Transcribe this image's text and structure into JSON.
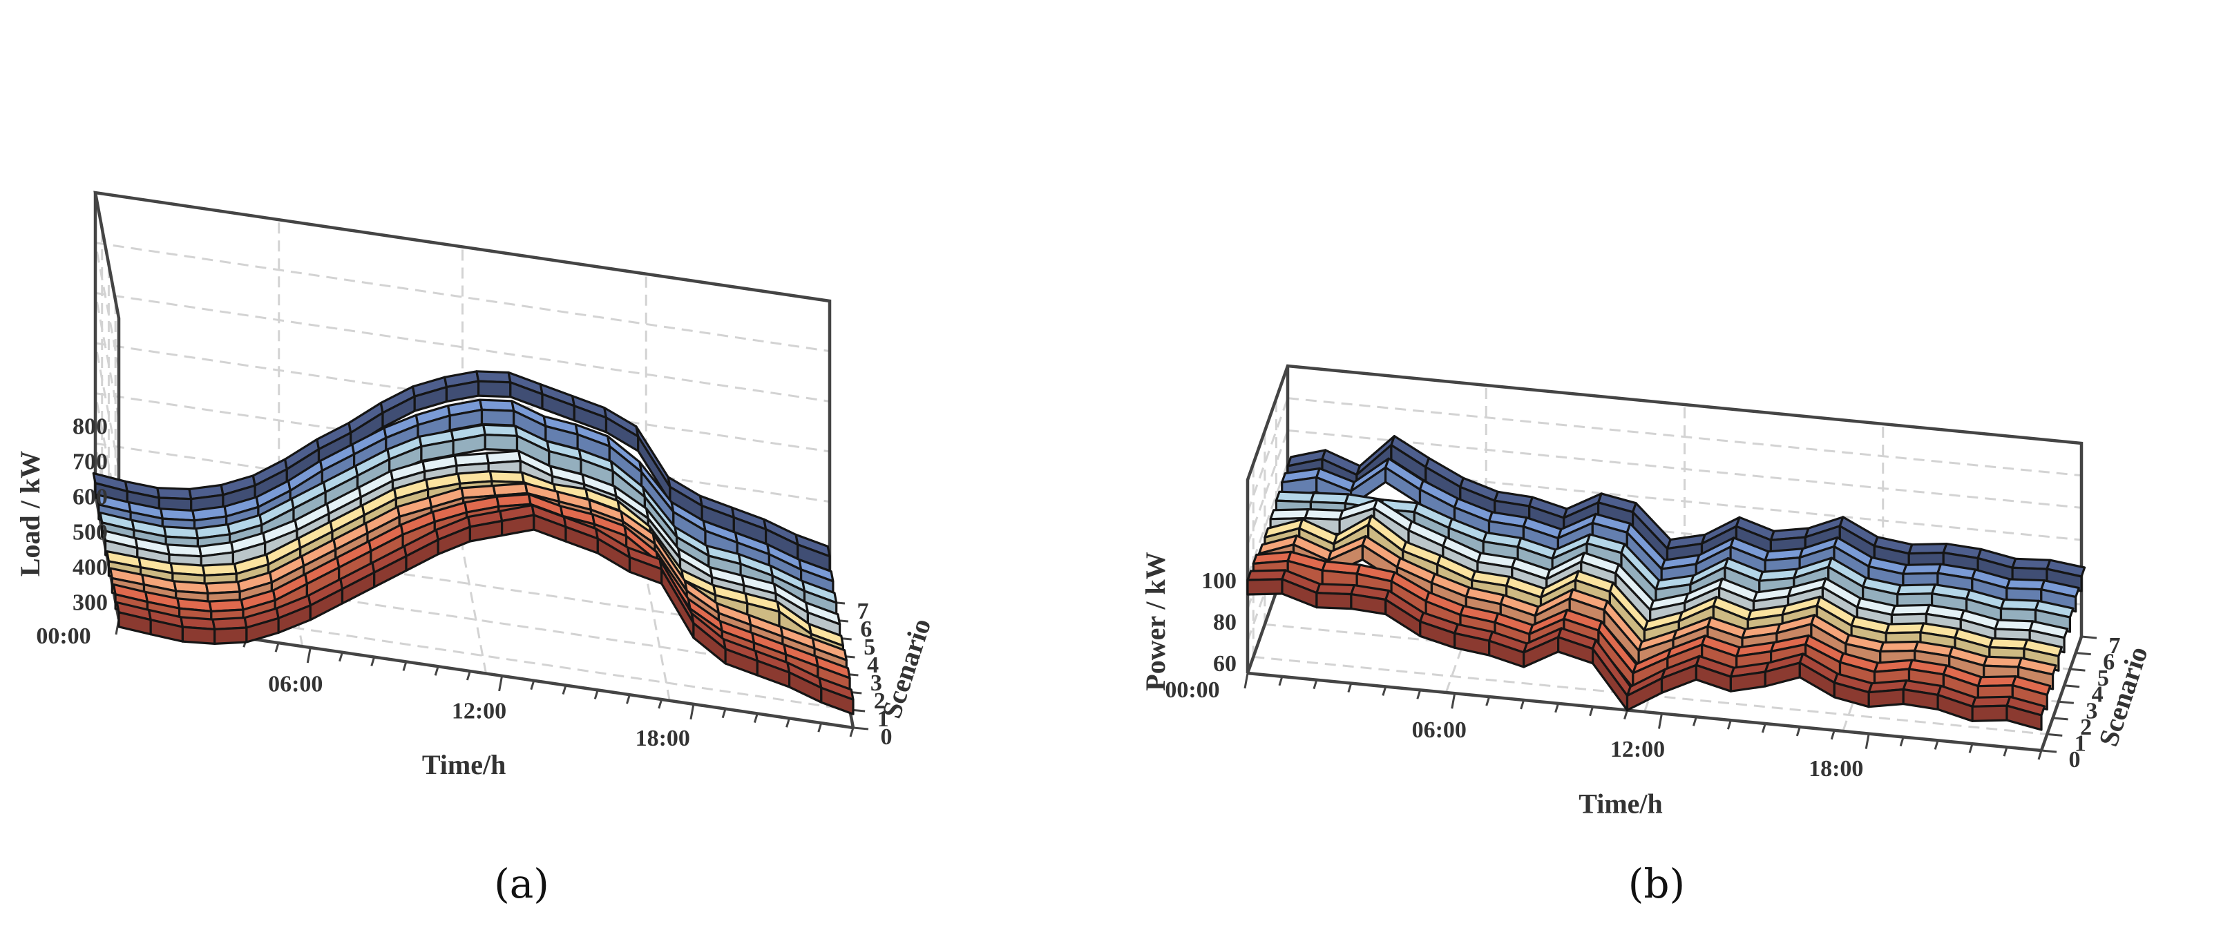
{
  "chart_data": [
    {
      "panel_label": "(a)",
      "type": "3d-ribbon-line",
      "zlabel": "Load / kW",
      "xlabel": "Time/h",
      "ylabel": "Scenario",
      "x_ticks": [
        "00:00",
        "06:00",
        "12:00",
        "18:00"
      ],
      "z_ticks": [
        "300",
        "400",
        "500",
        "600",
        "700",
        "800"
      ],
      "y_ticks": [
        "0",
        "1",
        "2",
        "3",
        "4",
        "5",
        "6",
        "7"
      ],
      "zlim": [
        250,
        850
      ],
      "x_unit": "hour",
      "x": [
        0,
        1,
        2,
        3,
        4,
        5,
        6,
        7,
        8,
        9,
        10,
        11,
        12,
        13,
        14,
        15,
        16,
        17,
        18,
        19,
        20,
        21,
        22,
        23
      ],
      "series": [
        {
          "name": "0",
          "color": "#a9473a",
          "values": [
            270,
            262,
            255,
            262,
            280,
            320,
            370,
            430,
            490,
            550,
            610,
            660,
            690,
            720,
            700,
            680,
            640,
            620,
            480,
            420,
            400,
            380,
            350,
            330
          ]
        },
        {
          "name": "1",
          "color": "#e06a4e",
          "values": [
            270,
            262,
            257,
            262,
            280,
            320,
            380,
            440,
            500,
            560,
            610,
            650,
            680,
            700,
            680,
            670,
            650,
            590,
            470,
            420,
            400,
            380,
            360,
            340
          ]
        },
        {
          "name": "2",
          "color": "#f5a57a",
          "values": [
            265,
            260,
            255,
            262,
            280,
            320,
            380,
            440,
            500,
            560,
            600,
            640,
            660,
            680,
            670,
            660,
            640,
            590,
            470,
            420,
            400,
            380,
            360,
            340
          ]
        },
        {
          "name": "3",
          "color": "#fbe3a0",
          "values": [
            262,
            258,
            255,
            262,
            280,
            320,
            380,
            440,
            500,
            560,
            600,
            630,
            650,
            660,
            640,
            640,
            620,
            560,
            450,
            420,
            410,
            400,
            350,
            330
          ]
        },
        {
          "name": "4",
          "color": "#e4f1f6",
          "values": [
            270,
            262,
            257,
            265,
            290,
            330,
            380,
            440,
            500,
            560,
            600,
            630,
            650,
            670,
            640,
            630,
            610,
            560,
            460,
            420,
            410,
            400,
            360,
            340
          ]
        },
        {
          "name": "5",
          "color": "#b4d6e8",
          "values": [
            270,
            262,
            257,
            265,
            290,
            330,
            390,
            450,
            510,
            570,
            620,
            650,
            680,
            690,
            660,
            650,
            630,
            570,
            470,
            430,
            420,
            400,
            370,
            350
          ]
        },
        {
          "name": "6",
          "color": "#7a9bd6",
          "values": [
            270,
            262,
            257,
            265,
            290,
            330,
            390,
            460,
            520,
            580,
            630,
            670,
            700,
            710,
            680,
            670,
            650,
            590,
            490,
            450,
            430,
            410,
            380,
            360
          ]
        },
        {
          "name": "7",
          "color": "#4e5f8e",
          "values": [
            280,
            270,
            265,
            275,
            300,
            340,
            400,
            470,
            530,
            600,
            660,
            700,
            730,
            740,
            720,
            700,
            680,
            640,
            510,
            470,
            450,
            430,
            400,
            380
          ]
        }
      ]
    },
    {
      "panel_label": "(b)",
      "type": "3d-ribbon-line",
      "zlabel": "Power / kW",
      "xlabel": "Time/h",
      "ylabel": "Scenario",
      "x_ticks": [
        "00:00",
        "06:00",
        "12:00",
        "18:00"
      ],
      "z_ticks": [
        "60",
        "80",
        "100"
      ],
      "y_ticks": [
        "0",
        "1",
        "2",
        "3",
        "4",
        "5",
        "6",
        "7"
      ],
      "zlim": [
        55,
        105
      ],
      "x_unit": "hour",
      "x": [
        0,
        1,
        2,
        3,
        4,
        5,
        6,
        7,
        8,
        9,
        10,
        11,
        12,
        13,
        14,
        15,
        16,
        17,
        18,
        19,
        20,
        21,
        22,
        23
      ],
      "series": [
        {
          "name": "0",
          "color": "#a9473a",
          "values": [
            100,
            102,
            97,
            98,
            97,
            88,
            84,
            82,
            78,
            87,
            83,
            62,
            72,
            80,
            76,
            80,
            86,
            78,
            75,
            78,
            77,
            73,
            75,
            72
          ]
        },
        {
          "name": "1",
          "color": "#e06a4e",
          "values": [
            100,
            103,
            100,
            100,
            98,
            90,
            85,
            83,
            79,
            88,
            84,
            65,
            74,
            82,
            78,
            82,
            87,
            80,
            77,
            80,
            79,
            75,
            77,
            74
          ]
        },
        {
          "name": "2",
          "color": "#f5a57a",
          "values": [
            97,
            103,
            97,
            106,
            97,
            91,
            86,
            84,
            80,
            90,
            86,
            68,
            75,
            83,
            79,
            83,
            89,
            81,
            79,
            81,
            80,
            77,
            78,
            76
          ]
        },
        {
          "name": "3",
          "color": "#fbe3a0",
          "values": [
            97,
            103,
            97,
            108,
            97,
            92,
            86,
            85,
            81,
            91,
            87,
            70,
            76,
            85,
            80,
            84,
            90,
            82,
            80,
            82,
            81,
            78,
            79,
            77
          ]
        },
        {
          "name": "4",
          "color": "#e4f1f6",
          "values": [
            98,
            100,
            101,
            108,
            99,
            93,
            87,
            86,
            82,
            92,
            88,
            72,
            77,
            86,
            81,
            85,
            91,
            83,
            81,
            83,
            82,
            79,
            80,
            78
          ]
        },
        {
          "name": "5",
          "color": "#b4d6e8",
          "values": [
            99,
            100,
            101,
            100,
            100,
            94,
            89,
            88,
            84,
            93,
            90,
            74,
            78,
            88,
            83,
            86,
            93,
            85,
            83,
            85,
            84,
            81,
            82,
            80
          ]
        },
        {
          "name": "6",
          "color": "#7a9bd6",
          "values": [
            100,
            104,
            99,
            112,
            103,
            96,
            91,
            90,
            86,
            95,
            92,
            76,
            80,
            90,
            85,
            88,
            95,
            87,
            85,
            87,
            86,
            83,
            84,
            82
          ]
        },
        {
          "name": "7",
          "color": "#4e5f8e",
          "values": [
            100,
            105,
            99,
            115,
            106,
            98,
            93,
            92,
            88,
            97,
            94,
            78,
            82,
            92,
            87,
            90,
            97,
            89,
            87,
            89,
            88,
            85,
            86,
            84
          ]
        }
      ]
    }
  ]
}
